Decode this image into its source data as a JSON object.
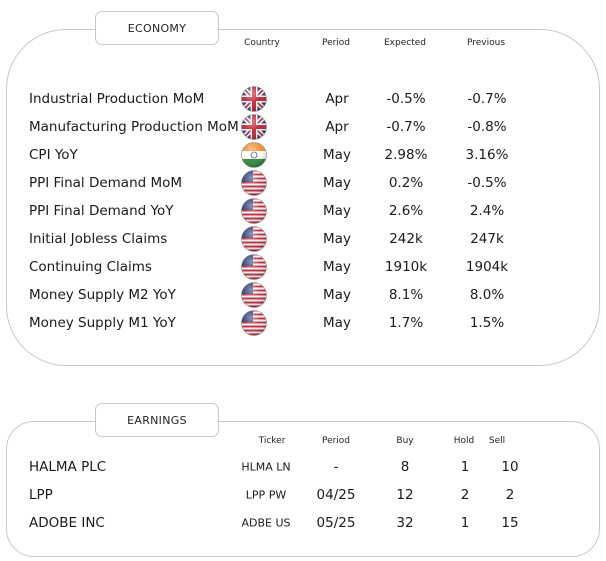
{
  "economy": {
    "tab_label": "ECONOMY",
    "headers": {
      "country": "Country",
      "period": "Period",
      "expected": "Expected",
      "previous": "Previous"
    },
    "rows": [
      {
        "name": "Industrial Production MoM",
        "country": "uk-flag-icon",
        "period": "Apr",
        "expected": "-0.5%",
        "previous": "-0.7%"
      },
      {
        "name": "Manufacturing Production MoM",
        "country": "uk-flag-icon",
        "period": "Apr",
        "expected": "-0.7%",
        "previous": "-0.8%"
      },
      {
        "name": "CPI YoY",
        "country": "india-flag-icon",
        "period": "May",
        "expected": "2.98%",
        "previous": "3.16%"
      },
      {
        "name": "PPI Final Demand MoM",
        "country": "us-flag-icon",
        "period": "May",
        "expected": "0.2%",
        "previous": "-0.5%"
      },
      {
        "name": "PPI Final Demand YoY",
        "country": "us-flag-icon",
        "period": "May",
        "expected": "2.6%",
        "previous": "2.4%"
      },
      {
        "name": "Initial Jobless Claims",
        "country": "us-flag-icon",
        "period": "May",
        "expected": "242k",
        "previous": "247k"
      },
      {
        "name": "Continuing Claims",
        "country": "us-flag-icon",
        "period": "May",
        "expected": "1910k",
        "previous": "1904k"
      },
      {
        "name": "Money Supply M2 YoY",
        "country": "us-flag-icon",
        "period": "May",
        "expected": "8.1%",
        "previous": "8.0%"
      },
      {
        "name": "Money Supply M1 YoY",
        "country": "us-flag-icon",
        "period": "May",
        "expected": "1.7%",
        "previous": "1.5%"
      }
    ]
  },
  "earnings": {
    "tab_label": "EARNINGS",
    "headers": {
      "ticker": "Ticker",
      "period": "Period",
      "buy": "Buy",
      "hold": "Hold",
      "sell": "Sell"
    },
    "rows": [
      {
        "name": "HALMA PLC",
        "ticker": "HLMA LN",
        "period": "-",
        "buy": "8",
        "hold": "1",
        "sell": "10"
      },
      {
        "name": "LPP",
        "ticker": "LPP PW",
        "period": "04/25",
        "buy": "12",
        "hold": "2",
        "sell": "2"
      },
      {
        "name": "ADOBE INC",
        "ticker": "ADBE US",
        "period": "05/25",
        "buy": "32",
        "hold": "1",
        "sell": "15"
      }
    ]
  },
  "colors": {
    "border": "#c8c8c8",
    "us_blue": "#2a3f7a",
    "us_red": "#c8202f",
    "uk_blue": "#1f3a7a",
    "uk_red": "#c8202f",
    "in_saffron": "#f0902a",
    "in_green": "#2e8b3a",
    "in_chakra": "#1f3a8a"
  }
}
